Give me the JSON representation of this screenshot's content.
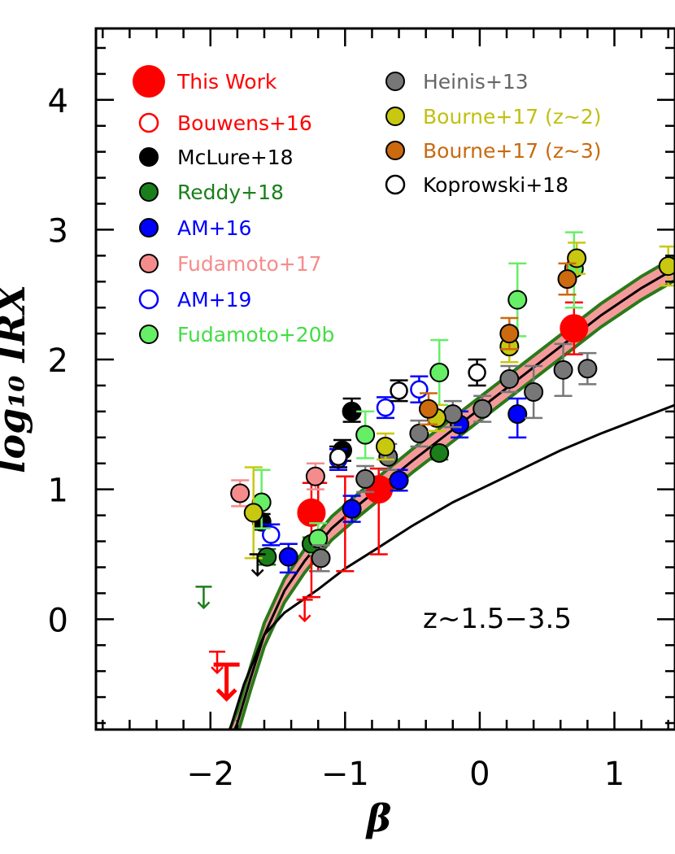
{
  "chart_data": {
    "type": "scatter",
    "xlabel": "β",
    "ylabel": "log₁₀ IRX",
    "xlim": [
      -2.85,
      1.45
    ],
    "ylim": [
      -0.85,
      4.55
    ],
    "x_ticks": [
      "−2",
      "−1",
      "0",
      "1"
    ],
    "y_ticks": [
      "0",
      "1",
      "2",
      "3",
      "4"
    ],
    "annotation": "z~1.5−3.5",
    "legend_position": "top-left",
    "legend_left": [
      {
        "label": "This Work",
        "color": "#ff0000",
        "marker": "filled-large",
        "text_color": "#ff0000"
      },
      {
        "label": "Bouwens+16",
        "color": "#ff0000",
        "marker": "open",
        "text_color": "#ff0000"
      },
      {
        "label": "McLure+18",
        "color": "#000000",
        "marker": "filled",
        "text_color": "#000000"
      },
      {
        "label": "Reddy+18",
        "color": "#1a7f1a",
        "marker": "filled",
        "text_color": "#1a7f1a"
      },
      {
        "label": "AM+16",
        "color": "#0000ff",
        "marker": "filled",
        "text_color": "#0000ff"
      },
      {
        "label": "Fudamoto+17",
        "color": "#f58c8c",
        "marker": "filled",
        "text_color": "#f58c8c"
      },
      {
        "label": "AM+19",
        "color": "#0000ff",
        "marker": "open",
        "text_color": "#0000ff"
      },
      {
        "label": "Fudamoto+20b",
        "color": "#66ee66",
        "marker": "filled",
        "text_color": "#44dd44"
      }
    ],
    "legend_right": [
      {
        "label": "Heinis+13",
        "color": "#777777",
        "marker": "filled",
        "text_color": "#666666"
      },
      {
        "label": "Bourne+17 (z~2)",
        "color": "#c8c810",
        "marker": "filled",
        "text_color": "#c0c010"
      },
      {
        "label": "Bourne+17 (z~3)",
        "color": "#cc6a10",
        "marker": "filled",
        "text_color": "#c86a10"
      },
      {
        "label": "Koprowski+18",
        "color": "#000000",
        "marker": "open",
        "text_color": "#000000"
      }
    ],
    "curves": {
      "lower_relation": [
        [
          -1.9,
          -1.0
        ],
        [
          -1.75,
          -0.5
        ],
        [
          -1.6,
          -0.12
        ],
        [
          -1.45,
          0.05
        ],
        [
          -1.2,
          0.23
        ],
        [
          -1.0,
          0.39
        ],
        [
          -0.8,
          0.52
        ],
        [
          -0.5,
          0.72
        ],
        [
          -0.2,
          0.9
        ],
        [
          0.0,
          1.0
        ],
        [
          0.3,
          1.15
        ],
        [
          0.6,
          1.3
        ],
        [
          0.9,
          1.43
        ],
        [
          1.2,
          1.55
        ],
        [
          1.45,
          1.65
        ]
      ],
      "band_center": [
        [
          -1.88,
          -1.0
        ],
        [
          -1.8,
          -0.8
        ],
        [
          -1.7,
          -0.45
        ],
        [
          -1.6,
          -0.12
        ],
        [
          -1.45,
          0.22
        ],
        [
          -1.3,
          0.45
        ],
        [
          -1.1,
          0.7
        ],
        [
          -0.9,
          0.88
        ],
        [
          -0.7,
          1.05
        ],
        [
          -0.5,
          1.22
        ],
        [
          -0.3,
          1.38
        ],
        [
          0.0,
          1.62
        ],
        [
          0.3,
          1.86
        ],
        [
          0.6,
          2.1
        ],
        [
          0.9,
          2.34
        ],
        [
          1.2,
          2.55
        ],
        [
          1.45,
          2.7
        ]
      ],
      "band_halfwidth": 0.09
    },
    "series": [
      {
        "name": "This Work",
        "color": "#ff0000",
        "marker": "filled-large",
        "points": [
          {
            "x": -1.25,
            "y": 0.82,
            "yerr": [
              0.65,
              0.23
            ]
          },
          {
            "x": -0.75,
            "y": 1.0,
            "yerr": [
              0.5,
              0.16
            ]
          },
          {
            "x": 0.7,
            "y": 2.24,
            "yerr": [
              0.2,
              0.2
            ]
          }
        ]
      },
      {
        "name": "Bouwens+16",
        "color": "#ff0000",
        "marker": "errbar-only",
        "points": [
          {
            "x": -1.0,
            "y": 0.85,
            "yerr": [
              0.48,
              0.25
            ]
          },
          {
            "x": -1.2,
            "y": 0.75,
            "yerr": [
              0.38,
              0.3
            ]
          }
        ]
      },
      {
        "name": "McLure+18",
        "color": "#000000",
        "marker": "filled",
        "points": [
          {
            "x": -1.62,
            "y": 0.75,
            "yerr": [
              0.06,
              0.06
            ]
          },
          {
            "x": -1.02,
            "y": 1.3,
            "yerr": [
              0.08,
              0.08
            ]
          },
          {
            "x": -0.95,
            "y": 1.6,
            "yerr": [
              0.08,
              0.1
            ]
          }
        ]
      },
      {
        "name": "Reddy+18",
        "color": "#1a7f1a",
        "marker": "filled",
        "points": [
          {
            "x": -1.58,
            "y": 0.48,
            "yerr": [
              0.06,
              0.06
            ]
          },
          {
            "x": -1.25,
            "y": 0.58,
            "yerr": [
              0.05,
              0.05
            ]
          },
          {
            "x": -0.3,
            "y": 1.28,
            "yerr": [
              0.05,
              0.05
            ]
          }
        ]
      },
      {
        "name": "AM+16",
        "color": "#0000ff",
        "marker": "filled",
        "points": [
          {
            "x": -1.42,
            "y": 0.48,
            "yerr": [
              0.12,
              0.1
            ]
          },
          {
            "x": -0.95,
            "y": 0.85,
            "yerr": [
              0.1,
              0.1
            ]
          },
          {
            "x": -0.6,
            "y": 1.07,
            "yerr": [
              0.08,
              0.08
            ]
          },
          {
            "x": -0.15,
            "y": 1.5,
            "yerr": [
              0.1,
              0.1
            ]
          },
          {
            "x": 0.28,
            "y": 1.58,
            "yerr": [
              0.18,
              0.12
            ]
          }
        ]
      },
      {
        "name": "Fudamoto+17",
        "color": "#f58c8c",
        "marker": "filled",
        "points": [
          {
            "x": -1.78,
            "y": 0.97,
            "yerr": [
              0.1,
              0.1
            ]
          },
          {
            "x": -1.22,
            "y": 1.1,
            "yerr": [
              0.1,
              0.1
            ]
          }
        ]
      },
      {
        "name": "AM+19",
        "color": "#0000ff",
        "marker": "open",
        "points": [
          {
            "x": -1.55,
            "y": 0.65,
            "yerr": [
              0.08,
              0.08
            ]
          },
          {
            "x": -1.05,
            "y": 1.23,
            "yerr": [
              0.08,
              0.08
            ]
          },
          {
            "x": -0.7,
            "y": 1.63,
            "yerr": [
              0.08,
              0.08
            ]
          },
          {
            "x": -0.45,
            "y": 1.77,
            "yerr": [
              0.1,
              0.1
            ]
          }
        ]
      },
      {
        "name": "Fudamoto+20b",
        "color": "#66ee66",
        "marker": "filled",
        "points": [
          {
            "x": -1.62,
            "y": 0.9,
            "yerr": [
              0.2,
              0.25
            ]
          },
          {
            "x": -1.2,
            "y": 0.62,
            "yerr": [
              0.12,
              0.12
            ]
          },
          {
            "x": -0.85,
            "y": 1.42,
            "yerr": [
              0.18,
              0.18
            ]
          },
          {
            "x": -0.3,
            "y": 1.9,
            "yerr": [
              0.25,
              0.25
            ]
          },
          {
            "x": 0.28,
            "y": 2.46,
            "yerr": [
              0.28,
              0.28
            ]
          },
          {
            "x": 0.7,
            "y": 2.7,
            "yerr": [
              0.3,
              0.28
            ]
          }
        ]
      },
      {
        "name": "Heinis+13",
        "color": "#777777",
        "marker": "filled",
        "points": [
          {
            "x": -1.18,
            "y": 0.47,
            "yerr": [
              0.1,
              0.1
            ]
          },
          {
            "x": -0.85,
            "y": 1.08,
            "yerr": [
              0.1,
              0.1
            ]
          },
          {
            "x": -0.68,
            "y": 1.25,
            "yerr": [
              0.1,
              0.1
            ]
          },
          {
            "x": -0.45,
            "y": 1.43,
            "yerr": [
              0.1,
              0.1
            ]
          },
          {
            "x": -0.2,
            "y": 1.58,
            "yerr": [
              0.1,
              0.1
            ]
          },
          {
            "x": 0.02,
            "y": 1.62,
            "yerr": [
              0.1,
              0.1
            ]
          },
          {
            "x": 0.22,
            "y": 1.85,
            "yerr": [
              0.1,
              0.1
            ]
          },
          {
            "x": 0.4,
            "y": 1.75,
            "yerr": [
              0.2,
              0.2
            ]
          },
          {
            "x": 0.62,
            "y": 1.92,
            "yerr": [
              0.2,
              0.2
            ]
          },
          {
            "x": 0.8,
            "y": 1.93,
            "yerr": [
              0.12,
              0.12
            ]
          }
        ]
      },
      {
        "name": "Bourne+17 (z~2)",
        "color": "#c8c810",
        "marker": "filled",
        "points": [
          {
            "x": -1.68,
            "y": 0.82,
            "yerr": [
              0.35,
              0.35
            ]
          },
          {
            "x": -0.7,
            "y": 1.33,
            "yerr": [
              0.1,
              0.1
            ]
          },
          {
            "x": -0.32,
            "y": 1.55,
            "yerr": [
              0.1,
              0.1
            ]
          },
          {
            "x": 0.22,
            "y": 2.1,
            "yerr": [
              0.12,
              0.12
            ]
          },
          {
            "x": 0.72,
            "y": 2.78,
            "yerr": [
              0.12,
              0.12
            ]
          },
          {
            "x": 1.4,
            "y": 2.72,
            "yerr": [
              0.15,
              0.15
            ]
          }
        ]
      },
      {
        "name": "Bourne+17 (z~3)",
        "color": "#cc6a10",
        "marker": "filled",
        "points": [
          {
            "x": -0.38,
            "y": 1.62,
            "yerr": [
              0.12,
              0.12
            ]
          },
          {
            "x": 0.22,
            "y": 2.2,
            "yerr": [
              0.12,
              0.12
            ]
          },
          {
            "x": 0.65,
            "y": 2.62,
            "yerr": [
              0.12,
              0.12
            ]
          }
        ]
      },
      {
        "name": "Koprowski+18",
        "color": "#000000",
        "marker": "open",
        "points": [
          {
            "x": -1.05,
            "y": 1.25,
            "yerr": [
              0.08,
              0.08
            ]
          },
          {
            "x": -0.6,
            "y": 1.76,
            "yerr": [
              0.08,
              0.08
            ]
          },
          {
            "x": -0.02,
            "y": 1.9,
            "yerr": [
              0.1,
              0.1
            ]
          }
        ]
      }
    ],
    "upper_limits": [
      {
        "x": -2.05,
        "y": 0.25,
        "color": "#1a7f1a",
        "size": "small"
      },
      {
        "x": -1.65,
        "y": 0.5,
        "color": "#000000",
        "size": "small"
      },
      {
        "x": -1.3,
        "y": 0.15,
        "color": "#ff0000",
        "size": "small"
      },
      {
        "x": -1.95,
        "y": -0.25,
        "color": "#ff0000",
        "size": "small"
      },
      {
        "x": -1.88,
        "y": -0.35,
        "color": "#ff0000",
        "size": "large"
      }
    ]
  }
}
